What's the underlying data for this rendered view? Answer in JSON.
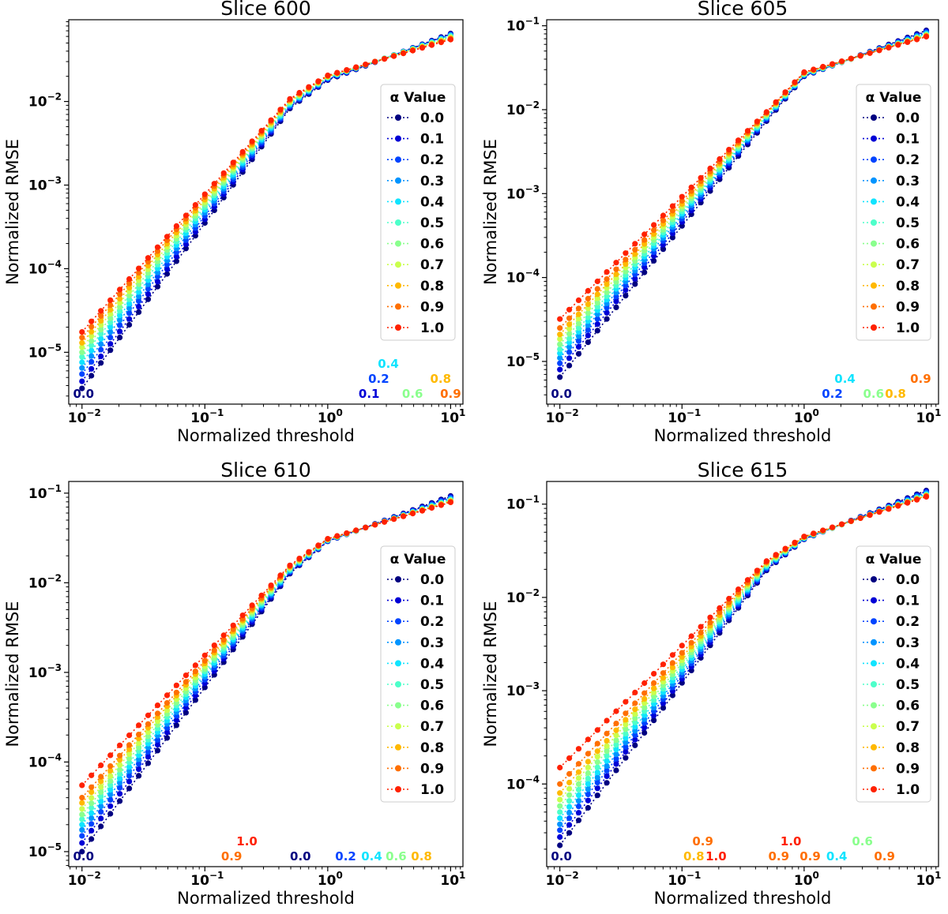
{
  "figure": {
    "xlabel": "Normalized threshold",
    "ylabel": "Normalized RMSE",
    "legend_title": "α Value",
    "alphas": [
      "0.0",
      "0.1",
      "0.2",
      "0.3",
      "0.4",
      "0.5",
      "0.6",
      "0.7",
      "0.8",
      "0.9",
      "1.0"
    ],
    "colors": [
      "#000080",
      "#0000d6",
      "#0044ff",
      "#0094ff",
      "#10e4ff",
      "#4dffca",
      "#8aff8d",
      "#caff4d",
      "#ffb900",
      "#ff6f00",
      "#ff2100"
    ],
    "x_ticks": [
      {
        "base": "10",
        "exp": "−2"
      },
      {
        "base": "10",
        "exp": "−1"
      },
      {
        "base": "10",
        "exp": "0"
      },
      {
        "base": "10",
        "exp": "1"
      }
    ]
  },
  "chart_data": [
    {
      "type": "line",
      "title": "Slice 600",
      "xscale": "log",
      "yscale": "log",
      "xlim": [
        0.0078,
        12.6
      ],
      "ylim": [
        2.4e-06,
        0.095
      ],
      "x_range": [
        0.01,
        10
      ],
      "n_points": 40,
      "y_at_xmin": [
        3.7e-06,
        4.5e-06,
        5.5e-06,
        6.5e-06,
        7.6e-06,
        8.8e-06,
        1e-05,
        1.15e-05,
        1.3e-05,
        1.5e-05,
        1.75e-05
      ],
      "y_at_knee_0_5": [
        0.0085,
        0.0088,
        0.009,
        0.0093,
        0.0095,
        0.0098,
        0.01,
        0.0102,
        0.0105,
        0.0108,
        0.011
      ],
      "y_at_1": [
        0.018,
        0.0183,
        0.0186,
        0.019,
        0.0192,
        0.0194,
        0.0196,
        0.0198,
        0.02,
        0.0202,
        0.0205
      ],
      "y_at_xmax": [
        0.065,
        0.064,
        0.063,
        0.062,
        0.061,
        0.06,
        0.059,
        0.058,
        0.057,
        0.056,
        0.055
      ],
      "y_ticks": [
        {
          "base": "10",
          "exp": "−5",
          "value": 1e-05
        },
        {
          "base": "10",
          "exp": "−4",
          "value": 0.0001
        },
        {
          "base": "10",
          "exp": "−3",
          "value": 0.001
        },
        {
          "base": "10",
          "exp": "−2",
          "value": 0.01
        }
      ],
      "legend_position": "center-right",
      "annotations": [
        {
          "text": "0.0",
          "x": 0.0103,
          "row": 0,
          "color_index": 0
        },
        {
          "text": "0.1",
          "x": 2.17,
          "row": 0,
          "color_index": 1
        },
        {
          "text": "0.2",
          "x": 2.6,
          "row": 1,
          "color_index": 2
        },
        {
          "text": "0.4",
          "x": 3.11,
          "row": 2,
          "color_index": 4
        },
        {
          "text": "0.6",
          "x": 4.9,
          "row": 0,
          "color_index": 6
        },
        {
          "text": "0.8",
          "x": 8.3,
          "row": 1,
          "color_index": 8
        },
        {
          "text": "0.9",
          "x": 10.0,
          "row": 0,
          "color_index": 9
        }
      ]
    },
    {
      "type": "line",
      "title": "Slice 605",
      "xscale": "log",
      "yscale": "log",
      "xlim": [
        0.0078,
        12.6
      ],
      "ylim": [
        3.1e-06,
        0.118
      ],
      "x_range": [
        0.01,
        10
      ],
      "n_points": 40,
      "y_at_xmin": [
        6.5e-06,
        8e-06,
        9.5e-06,
        1.1e-05,
        1.25e-05,
        1.4e-05,
        1.6e-05,
        1.85e-05,
        2.1e-05,
        2.5e-05,
        3.2e-05
      ],
      "y_at_knee_0_5": [
        0.0075,
        0.0078,
        0.008,
        0.0082,
        0.0084,
        0.0086,
        0.0088,
        0.009,
        0.0092,
        0.0094,
        0.0096
      ],
      "y_at_1": [
        0.025,
        0.0253,
        0.0256,
        0.0259,
        0.0262,
        0.0265,
        0.0268,
        0.0271,
        0.0274,
        0.0277,
        0.028
      ],
      "y_at_xmax": [
        0.088,
        0.086,
        0.084,
        0.082,
        0.08,
        0.079,
        0.078,
        0.077,
        0.076,
        0.075,
        0.074
      ],
      "y_ticks": [
        {
          "base": "10",
          "exp": "−5",
          "value": 1e-05
        },
        {
          "base": "10",
          "exp": "−4",
          "value": 0.0001
        },
        {
          "base": "10",
          "exp": "−3",
          "value": 0.001
        },
        {
          "base": "10",
          "exp": "−2",
          "value": 0.01
        },
        {
          "base": "10",
          "exp": "−1",
          "value": 0.1
        }
      ],
      "legend_position": "center-right",
      "annotations": [
        {
          "text": "0.0",
          "x": 0.0103,
          "row": 0,
          "color_index": 0
        },
        {
          "text": "0.2",
          "x": 1.7,
          "row": 0,
          "color_index": 2
        },
        {
          "text": "0.4",
          "x": 2.16,
          "row": 1,
          "color_index": 4
        },
        {
          "text": "0.6",
          "x": 3.7,
          "row": 0,
          "color_index": 6
        },
        {
          "text": "0.8",
          "x": 5.6,
          "row": 0,
          "color_index": 8
        },
        {
          "text": "0.9",
          "x": 9.0,
          "row": 1,
          "color_index": 9
        }
      ]
    },
    {
      "type": "line",
      "title": "Slice 610",
      "xscale": "log",
      "yscale": "log",
      "xlim": [
        0.0078,
        12.6
      ],
      "ylim": [
        6.8e-06,
        0.135
      ],
      "x_range": [
        0.01,
        10
      ],
      "n_points": 40,
      "y_at_xmin": [
        1e-05,
        1.25e-05,
        1.5e-05,
        1.75e-05,
        2e-05,
        2.3e-05,
        2.6e-05,
        3e-05,
        3.5e-05,
        4e-05,
        5.5e-05
      ],
      "y_at_knee_0_5": [
        0.013,
        0.0133,
        0.0136,
        0.0139,
        0.0142,
        0.0145,
        0.0148,
        0.0151,
        0.0154,
        0.0157,
        0.016
      ],
      "y_at_1": [
        0.029,
        0.0292,
        0.0294,
        0.0296,
        0.0298,
        0.03,
        0.0302,
        0.0304,
        0.0306,
        0.0308,
        0.031
      ],
      "y_at_xmax": [
        0.093,
        0.091,
        0.089,
        0.087,
        0.085,
        0.084,
        0.083,
        0.082,
        0.081,
        0.08,
        0.079
      ],
      "y_ticks": [
        {
          "base": "10",
          "exp": "−5",
          "value": 1e-05
        },
        {
          "base": "10",
          "exp": "−4",
          "value": 0.0001
        },
        {
          "base": "10",
          "exp": "−3",
          "value": 0.001
        },
        {
          "base": "10",
          "exp": "−2",
          "value": 0.01
        },
        {
          "base": "10",
          "exp": "−1",
          "value": 0.1
        }
      ],
      "legend_position": "center-right",
      "annotations": [
        {
          "text": "0.0",
          "x": 0.0103,
          "row": 0,
          "color_index": 0
        },
        {
          "text": "1.0",
          "x": 0.22,
          "row": 1,
          "color_index": 10
        },
        {
          "text": "0.9",
          "x": 0.165,
          "row": 0,
          "color_index": 9
        },
        {
          "text": "0.0",
          "x": 0.6,
          "row": 0,
          "color_index": 0
        },
        {
          "text": "0.2",
          "x": 1.4,
          "row": 0,
          "color_index": 2
        },
        {
          "text": "0.4",
          "x": 2.28,
          "row": 0,
          "color_index": 4
        },
        {
          "text": "0.6",
          "x": 3.6,
          "row": 0,
          "color_index": 6
        },
        {
          "text": "0.8",
          "x": 5.8,
          "row": 0,
          "color_index": 8
        }
      ]
    },
    {
      "type": "line",
      "title": "Slice 615",
      "xscale": "log",
      "yscale": "log",
      "xlim": [
        0.0078,
        12.6
      ],
      "ylim": [
        1.3e-05,
        0.175
      ],
      "x_range": [
        0.01,
        10
      ],
      "n_points": 40,
      "y_at_xmin": [
        2.2e-05,
        2.7e-05,
        3.2e-05,
        3.7e-05,
        4.3e-05,
        5e-05,
        5.8e-05,
        6.8e-05,
        8e-05,
        0.0001,
        0.00015
      ],
      "y_at_knee_0_5": [
        0.02,
        0.0205,
        0.021,
        0.0215,
        0.022,
        0.0225,
        0.023,
        0.0235,
        0.024,
        0.0245,
        0.025
      ],
      "y_at_1": [
        0.042,
        0.0423,
        0.0426,
        0.0429,
        0.0432,
        0.0435,
        0.0438,
        0.0441,
        0.0444,
        0.0447,
        0.045
      ],
      "y_at_xmax": [
        0.14,
        0.137,
        0.134,
        0.131,
        0.128,
        0.126,
        0.125,
        0.124,
        0.123,
        0.122,
        0.12
      ],
      "y_ticks": [
        {
          "base": "10",
          "exp": "−4",
          "value": 0.0001
        },
        {
          "base": "10",
          "exp": "−3",
          "value": 0.001
        },
        {
          "base": "10",
          "exp": "−2",
          "value": 0.01
        },
        {
          "base": "10",
          "exp": "−1",
          "value": 0.1
        }
      ],
      "legend_position": "center-right",
      "annotations": [
        {
          "text": "0.0",
          "x": 0.0103,
          "row": 0,
          "color_index": 0
        },
        {
          "text": "0.8",
          "x": 0.125,
          "row": 0,
          "color_index": 8
        },
        {
          "text": "0.9",
          "x": 0.148,
          "row": 1,
          "color_index": 9
        },
        {
          "text": "1.0",
          "x": 0.19,
          "row": 0,
          "color_index": 10
        },
        {
          "text": "0.9",
          "x": 0.62,
          "row": 0,
          "color_index": 9
        },
        {
          "text": "1.0",
          "x": 0.78,
          "row": 1,
          "color_index": 10
        },
        {
          "text": "0.9",
          "x": 1.12,
          "row": 0,
          "color_index": 9
        },
        {
          "text": "0.4",
          "x": 1.85,
          "row": 0,
          "color_index": 4
        },
        {
          "text": "0.6",
          "x": 3.0,
          "row": 1,
          "color_index": 6
        },
        {
          "text": "0.9",
          "x": 4.55,
          "row": 0,
          "color_index": 9
        }
      ]
    }
  ]
}
